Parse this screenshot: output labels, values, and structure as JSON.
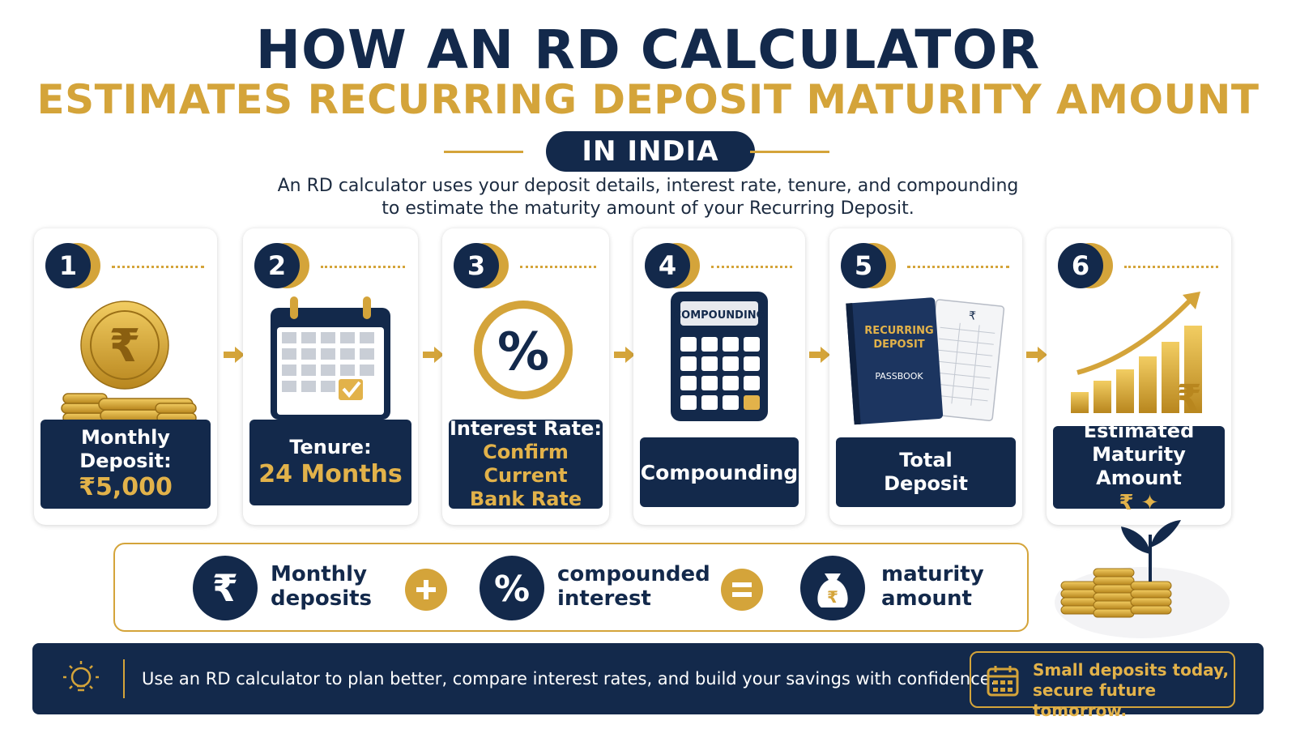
{
  "header": {
    "title_line1": "HOW AN RD CALCULATOR",
    "title_line2": "ESTIMATES RECURRING DEPOSIT MATURITY AMOUNT",
    "region_badge": "IN INDIA",
    "description_line1": "An RD calculator uses your deposit details, interest rate, tenure, and compounding",
    "description_line2": "to estimate the maturity amount of your Recurring Deposit."
  },
  "steps": [
    {
      "number": "1",
      "label_line1": "Monthly",
      "label_line2": "Deposit:",
      "highlight": "₹5,000",
      "icon": "rupee-coins-icon"
    },
    {
      "number": "2",
      "label_line1": "Tenure:",
      "highlight": "24 Months",
      "icon": "calendar-icon"
    },
    {
      "number": "3",
      "label_line1": "Interest Rate:",
      "highlight_line1": "Confirm Current",
      "highlight_line2": "Bank Rate",
      "icon": "percent-icon"
    },
    {
      "number": "4",
      "label_line1": "Compounding",
      "icon": "calculator-icon",
      "screen_text": "COMPOUNDING"
    },
    {
      "number": "5",
      "label_line1": "Total",
      "label_line2": "Deposit",
      "icon": "passbook-icon",
      "book_title_line1": "RECURRING",
      "book_title_line2": "DEPOSIT",
      "book_subtitle": "PASSBOOK"
    },
    {
      "number": "6",
      "label_line1": "Estimated",
      "label_line2": "Maturity Amount",
      "highlight": "₹ ✦",
      "icon": "growth-chart-icon"
    }
  ],
  "formula": {
    "term1_line1": "Monthly",
    "term1_line2": "deposits",
    "term2_line1": "compounded",
    "term2_line2": "interest",
    "term3_line1": "maturity",
    "term3_line2": "amount"
  },
  "footer": {
    "tip": "Use an RD calculator to plan better, compare interest rates, and build your savings with confidence.",
    "slogan_line1": "Small deposits today,",
    "slogan_line2": "secure future tomorrow."
  },
  "colors": {
    "navy": "#13294b",
    "gold": "#d4a43a"
  }
}
